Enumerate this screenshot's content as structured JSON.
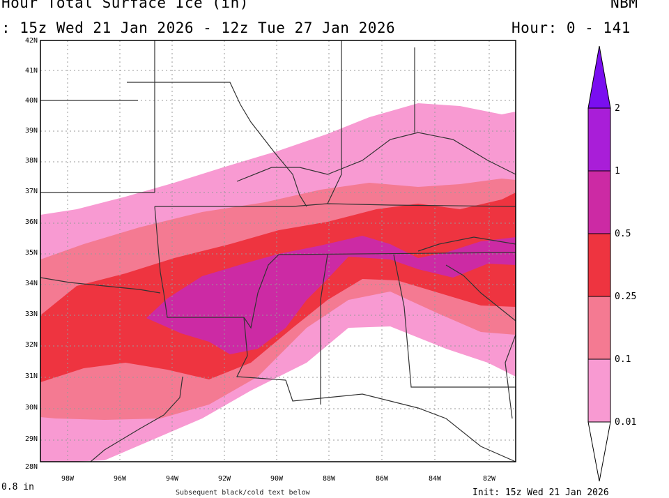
{
  "header": {
    "title": "Hour Total Surface Ice (in)",
    "model": "NBM",
    "period": ": 15z Wed 21 Jan 2026 - 12z Tue 27 Jan 2026",
    "hour_range": "Hour: 0 - 141"
  },
  "map": {
    "lat_labels": [
      "42N",
      "41N",
      "40N",
      "39N",
      "38N",
      "37N",
      "36N",
      "35N",
      "34N",
      "33N",
      "32N",
      "31N",
      "30N",
      "29N",
      "28N"
    ],
    "lon_labels": [
      "98W",
      "96W",
      "94W",
      "92W",
      "90W",
      "88W",
      "86W",
      "84W",
      "82W"
    ]
  },
  "legend": {
    "colors": [
      "#ffffff",
      "#f89ad2",
      "#f47a92",
      "#ee3440",
      "#cc2aa4",
      "#a91ed8",
      "#7a0ef0"
    ],
    "labels": [
      "0.01",
      "0.1",
      "0.25",
      "0.5",
      "1",
      "2"
    ]
  },
  "footer": {
    "max_value": "0.8 in",
    "init_label": "Init: 15z Wed 21 Jan 2026",
    "center_note": "Subsequent black/cold text below"
  }
}
